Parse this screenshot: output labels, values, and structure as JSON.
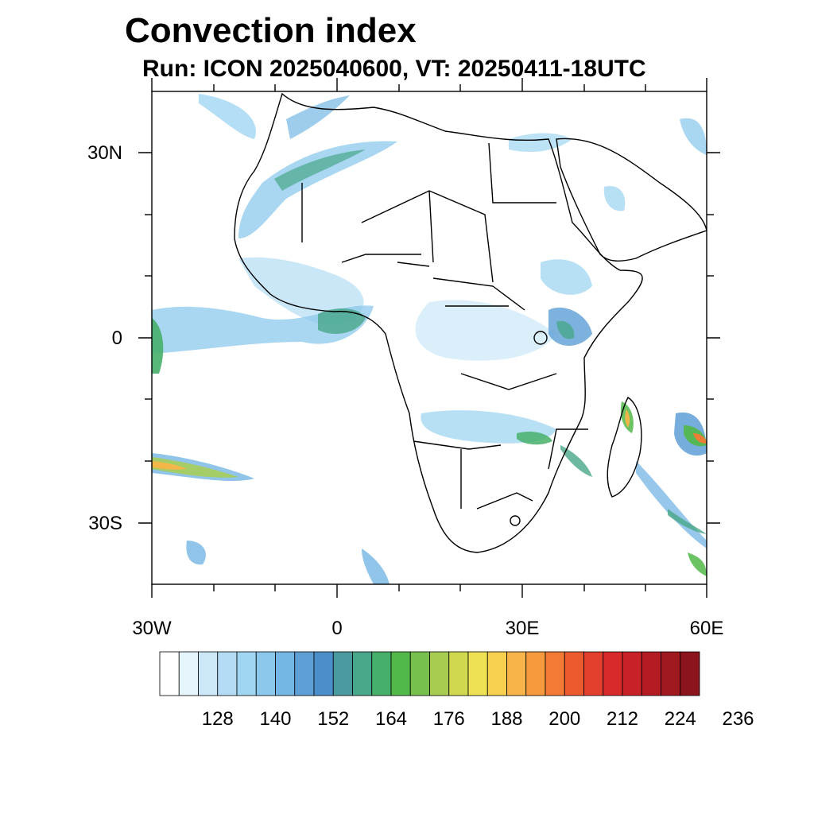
{
  "title": "Convection index",
  "subtitle": "Run: ICON 2025040600,  VT: 20250411-18UTC",
  "map": {
    "lon_range": [
      -30,
      60
    ],
    "lat_range": [
      -40,
      40
    ],
    "lat_ticks": [
      {
        "value": 30,
        "label": "30N"
      },
      {
        "value": 0,
        "label": "0"
      },
      {
        "value": -30,
        "label": "30S"
      }
    ],
    "lon_ticks": [
      {
        "value": -30,
        "label": "30W"
      },
      {
        "value": 0,
        "label": "0"
      },
      {
        "value": 30,
        "label": "30E"
      },
      {
        "value": 60,
        "label": "60E"
      }
    ]
  },
  "colorbar": {
    "colors": [
      "#ffffff",
      "#e6f4fc",
      "#cce8f8",
      "#b4ddf5",
      "#a0d6f2",
      "#8cc8ec",
      "#74b6e4",
      "#5e9fd6",
      "#4a8fca",
      "#4a9aa0",
      "#48a68a",
      "#46b06a",
      "#52b848",
      "#78c04e",
      "#a8cc50",
      "#d0d84e",
      "#eee254",
      "#f8d050",
      "#f8b448",
      "#f69a3e",
      "#f27a34",
      "#ec5a2e",
      "#e2402c",
      "#d82a2a",
      "#c82228",
      "#b41c24",
      "#a01820",
      "#8c141c"
    ],
    "labels": [
      "128",
      "140",
      "152",
      "164",
      "176",
      "188",
      "200",
      "212",
      "224",
      "236"
    ]
  }
}
